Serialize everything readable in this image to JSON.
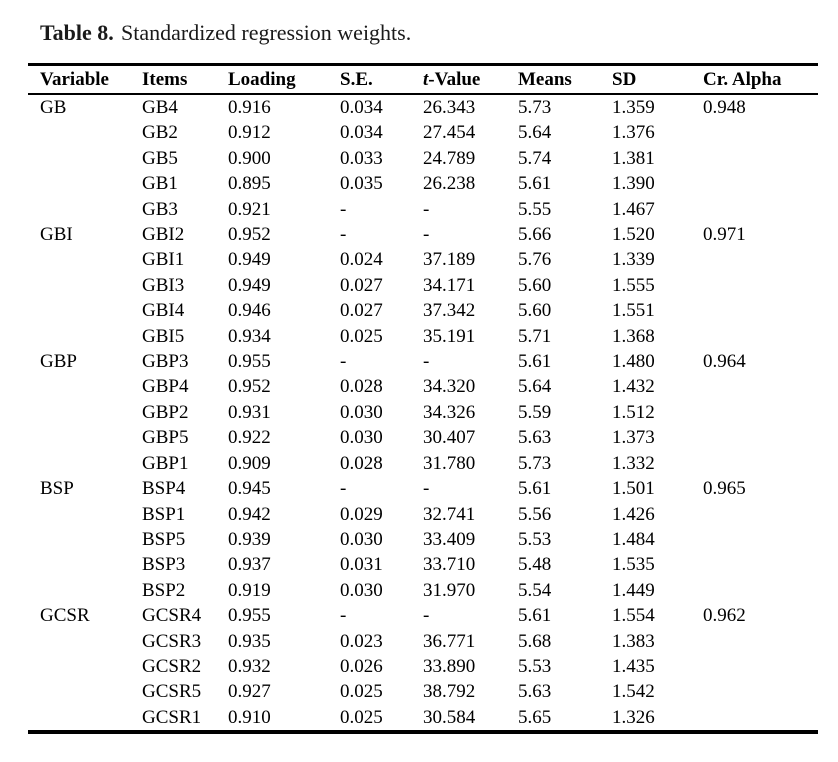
{
  "caption": {
    "label": "Table 8.",
    "text": "Standardized regression weights."
  },
  "table": {
    "headers": [
      {
        "text": "Variable"
      },
      {
        "text": "Items"
      },
      {
        "text": "Loading"
      },
      {
        "text": "S.E."
      },
      {
        "text": "t-Value",
        "italic_first_letter": true
      },
      {
        "text": "Means"
      },
      {
        "text": "SD"
      },
      {
        "text": "Cr. Alpha"
      }
    ],
    "rows": [
      [
        "GB",
        "GB4",
        "0.916",
        "0.034",
        "26.343",
        "5.73",
        "1.359",
        "0.948"
      ],
      [
        "",
        "GB2",
        "0.912",
        "0.034",
        "27.454",
        "5.64",
        "1.376",
        ""
      ],
      [
        "",
        "GB5",
        "0.900",
        "0.033",
        "24.789",
        "5.74",
        "1.381",
        ""
      ],
      [
        "",
        "GB1",
        "0.895",
        "0.035",
        "26.238",
        "5.61",
        "1.390",
        ""
      ],
      [
        "",
        "GB3",
        "0.921",
        "-",
        "-",
        "5.55",
        "1.467",
        ""
      ],
      [
        "GBI",
        "GBI2",
        "0.952",
        "-",
        "-",
        "5.66",
        "1.520",
        "0.971"
      ],
      [
        "",
        "GBI1",
        "0.949",
        "0.024",
        "37.189",
        "5.76",
        "1.339",
        ""
      ],
      [
        "",
        "GBI3",
        "0.949",
        "0.027",
        "34.171",
        "5.60",
        "1.555",
        ""
      ],
      [
        "",
        "GBI4",
        "0.946",
        "0.027",
        "37.342",
        "5.60",
        "1.551",
        ""
      ],
      [
        "",
        "GBI5",
        "0.934",
        "0.025",
        "35.191",
        "5.71",
        "1.368",
        ""
      ],
      [
        "GBP",
        "GBP3",
        "0.955",
        "-",
        "-",
        "5.61",
        "1.480",
        "0.964"
      ],
      [
        "",
        "GBP4",
        "0.952",
        "0.028",
        "34.320",
        "5.64",
        "1.432",
        ""
      ],
      [
        "",
        "GBP2",
        "0.931",
        "0.030",
        "34.326",
        "5.59",
        "1.512",
        ""
      ],
      [
        "",
        "GBP5",
        "0.922",
        "0.030",
        "30.407",
        "5.63",
        "1.373",
        ""
      ],
      [
        "",
        "GBP1",
        "0.909",
        "0.028",
        "31.780",
        "5.73",
        "1.332",
        ""
      ],
      [
        "BSP",
        "BSP4",
        "0.945",
        "-",
        "-",
        "5.61",
        "1.501",
        "0.965"
      ],
      [
        "",
        "BSP1",
        "0.942",
        "0.029",
        "32.741",
        "5.56",
        "1.426",
        ""
      ],
      [
        "",
        "BSP5",
        "0.939",
        "0.030",
        "33.409",
        "5.53",
        "1.484",
        ""
      ],
      [
        "",
        "BSP3",
        "0.937",
        "0.031",
        "33.710",
        "5.48",
        "1.535",
        ""
      ],
      [
        "",
        "BSP2",
        "0.919",
        "0.030",
        "31.970",
        "5.54",
        "1.449",
        ""
      ],
      [
        "GCSR",
        "GCSR4",
        "0.955",
        "-",
        "-",
        "5.61",
        "1.554",
        "0.962"
      ],
      [
        "",
        "GCSR3",
        "0.935",
        "0.023",
        "36.771",
        "5.68",
        "1.383",
        ""
      ],
      [
        "",
        "GCSR2",
        "0.932",
        "0.026",
        "33.890",
        "5.53",
        "1.435",
        ""
      ],
      [
        "",
        "GCSR5",
        "0.927",
        "0.025",
        "38.792",
        "5.63",
        "1.542",
        ""
      ],
      [
        "",
        "GCSR1",
        "0.910",
        "0.025",
        "30.584",
        "5.65",
        "1.326",
        ""
      ]
    ]
  }
}
